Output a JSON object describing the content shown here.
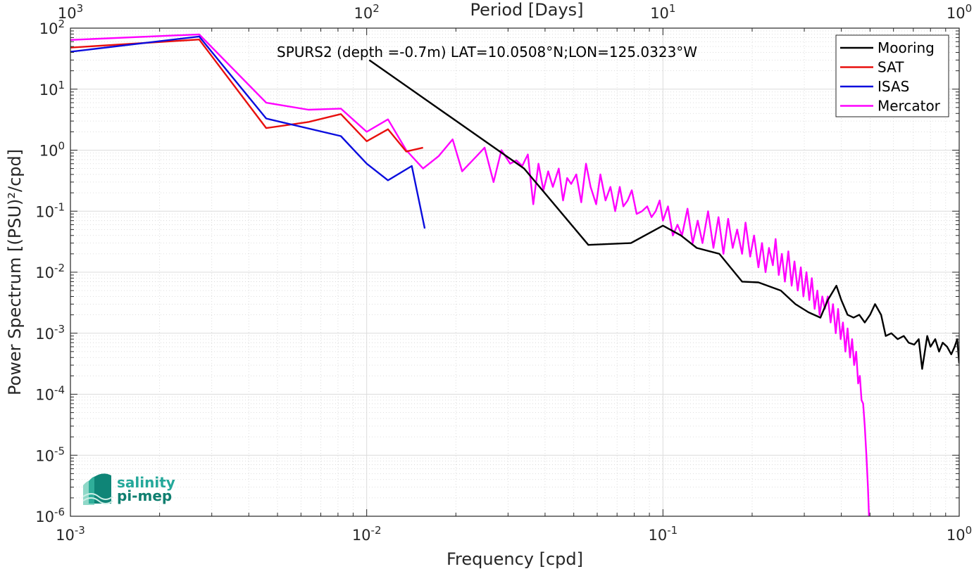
{
  "chart_data": {
    "type": "line",
    "title": "SPURS2 (depth =-0.7m) LAT=10.0508°N;LON=125.0323°W",
    "xlabel": "Frequency [cpd]",
    "ylabel": "Power Spectrum [(PSU)²/cpd]",
    "x2label": "Period [Days]",
    "xscale": "log",
    "yscale": "log",
    "xlim": [
      0.001,
      1
    ],
    "ylim": [
      1e-06,
      100
    ],
    "grid": true,
    "legend_position": "top-right",
    "x_ticks": [
      {
        "value": 0.001,
        "base": "10",
        "exp": "-3"
      },
      {
        "value": 0.01,
        "base": "10",
        "exp": "-2"
      },
      {
        "value": 0.1,
        "base": "10",
        "exp": "-1"
      },
      {
        "value": 1,
        "base": "10",
        "exp": "0"
      }
    ],
    "x2_ticks": [
      {
        "value": 0.001,
        "base": "10",
        "exp": "3"
      },
      {
        "value": 0.01,
        "base": "10",
        "exp": "2"
      },
      {
        "value": 0.1,
        "base": "10",
        "exp": "1"
      },
      {
        "value": 1,
        "base": "10",
        "exp": "0"
      }
    ],
    "y_ticks": [
      {
        "value": 100,
        "base": "10",
        "exp": "2"
      },
      {
        "value": 10,
        "base": "10",
        "exp": "1"
      },
      {
        "value": 1,
        "base": "10",
        "exp": "0"
      },
      {
        "value": 0.1,
        "base": "10",
        "exp": "-1"
      },
      {
        "value": 0.01,
        "base": "10",
        "exp": "-2"
      },
      {
        "value": 0.001,
        "base": "10",
        "exp": "-3"
      },
      {
        "value": 0.0001,
        "base": "10",
        "exp": "-4"
      },
      {
        "value": 1e-05,
        "base": "10",
        "exp": "-5"
      },
      {
        "value": 1e-06,
        "base": "10",
        "exp": "-6"
      }
    ],
    "series": [
      {
        "name": "Mooring",
        "color": "#000000",
        "points": [
          [
            0.0102,
            30
          ],
          [
            0.034,
            0.5
          ],
          [
            0.056,
            0.028
          ],
          [
            0.078,
            0.03
          ],
          [
            0.1,
            0.058
          ],
          [
            0.115,
            0.04
          ],
          [
            0.13,
            0.025
          ],
          [
            0.155,
            0.02
          ],
          [
            0.185,
            0.007
          ],
          [
            0.21,
            0.0068
          ],
          [
            0.25,
            0.005
          ],
          [
            0.28,
            0.003
          ],
          [
            0.31,
            0.0022
          ],
          [
            0.34,
            0.0018
          ],
          [
            0.36,
            0.0035
          ],
          [
            0.385,
            0.006
          ],
          [
            0.4,
            0.0035
          ],
          [
            0.42,
            0.002
          ],
          [
            0.44,
            0.0018
          ],
          [
            0.46,
            0.002
          ],
          [
            0.48,
            0.0015
          ],
          [
            0.5,
            0.002
          ],
          [
            0.52,
            0.003
          ],
          [
            0.545,
            0.002
          ],
          [
            0.565,
            0.0009
          ],
          [
            0.59,
            0.001
          ],
          [
            0.62,
            0.0008
          ],
          [
            0.65,
            0.0009
          ],
          [
            0.675,
            0.0007
          ],
          [
            0.705,
            0.00065
          ],
          [
            0.73,
            0.0008
          ],
          [
            0.75,
            0.00026
          ],
          [
            0.78,
            0.0009
          ],
          [
            0.8,
            0.0006
          ],
          [
            0.83,
            0.0008
          ],
          [
            0.855,
            0.0005
          ],
          [
            0.88,
            0.0007
          ],
          [
            0.91,
            0.0006
          ],
          [
            0.94,
            0.00045
          ],
          [
            0.965,
            0.0006
          ],
          [
            0.985,
            0.0008
          ],
          [
            1.0,
            0.00032
          ]
        ]
      },
      {
        "name": "SAT",
        "color": "#e8100e",
        "points": [
          [
            0.001,
            48
          ],
          [
            0.00272,
            65
          ],
          [
            0.00458,
            2.3
          ],
          [
            0.00636,
            2.9
          ],
          [
            0.00818,
            3.9
          ],
          [
            0.01,
            1.4
          ],
          [
            0.0118,
            2.2
          ],
          [
            0.0136,
            0.95
          ],
          [
            0.0155,
            1.1
          ]
        ]
      },
      {
        "name": "ISAS",
        "color": "#0b0dde",
        "points": [
          [
            0.001,
            41
          ],
          [
            0.00272,
            73
          ],
          [
            0.00458,
            3.3
          ],
          [
            0.00818,
            1.7
          ],
          [
            0.01,
            0.6
          ],
          [
            0.0118,
            0.32
          ],
          [
            0.0142,
            0.55
          ],
          [
            0.0157,
            0.052
          ]
        ]
      },
      {
        "name": "Mercator",
        "color": "#ff00ff",
        "points": [
          [
            0.001,
            64
          ],
          [
            0.00272,
            79
          ],
          [
            0.00458,
            6
          ],
          [
            0.00636,
            4.6
          ],
          [
            0.00818,
            4.8
          ],
          [
            0.01,
            2.0
          ],
          [
            0.0118,
            3.2
          ],
          [
            0.0136,
            1.0
          ],
          [
            0.0155,
            0.5
          ],
          [
            0.0175,
            0.8
          ],
          [
            0.0195,
            1.5
          ],
          [
            0.021,
            0.45
          ],
          [
            0.0235,
            0.8
          ],
          [
            0.025,
            1.1
          ],
          [
            0.0268,
            0.3
          ],
          [
            0.0285,
            1.0
          ],
          [
            0.0305,
            0.6
          ],
          [
            0.032,
            0.68
          ],
          [
            0.0335,
            0.55
          ],
          [
            0.035,
            0.85
          ],
          [
            0.0365,
            0.13
          ],
          [
            0.038,
            0.6
          ],
          [
            0.0395,
            0.22
          ],
          [
            0.041,
            0.45
          ],
          [
            0.0425,
            0.25
          ],
          [
            0.0445,
            0.5
          ],
          [
            0.046,
            0.15
          ],
          [
            0.0475,
            0.35
          ],
          [
            0.049,
            0.28
          ],
          [
            0.051,
            0.4
          ],
          [
            0.053,
            0.14
          ],
          [
            0.055,
            0.6
          ],
          [
            0.057,
            0.25
          ],
          [
            0.0595,
            0.13
          ],
          [
            0.0615,
            0.4
          ],
          [
            0.064,
            0.15
          ],
          [
            0.0665,
            0.25
          ],
          [
            0.069,
            0.1
          ],
          [
            0.0715,
            0.25
          ],
          [
            0.0735,
            0.12
          ],
          [
            0.076,
            0.15
          ],
          [
            0.0785,
            0.22
          ],
          [
            0.0815,
            0.09
          ],
          [
            0.085,
            0.1
          ],
          [
            0.0885,
            0.12
          ],
          [
            0.0915,
            0.08
          ],
          [
            0.0945,
            0.1
          ],
          [
            0.0975,
            0.15
          ],
          [
            0.1,
            0.07
          ],
          [
            0.104,
            0.12
          ],
          [
            0.108,
            0.04
          ],
          [
            0.112,
            0.06
          ],
          [
            0.116,
            0.04
          ],
          [
            0.121,
            0.11
          ],
          [
            0.126,
            0.03
          ],
          [
            0.131,
            0.07
          ],
          [
            0.136,
            0.03
          ],
          [
            0.142,
            0.1
          ],
          [
            0.148,
            0.025
          ],
          [
            0.154,
            0.08
          ],
          [
            0.16,
            0.02
          ],
          [
            0.166,
            0.075
          ],
          [
            0.172,
            0.025
          ],
          [
            0.178,
            0.05
          ],
          [
            0.185,
            0.02
          ],
          [
            0.19,
            0.065
          ],
          [
            0.197,
            0.018
          ],
          [
            0.203,
            0.04
          ],
          [
            0.21,
            0.012
          ],
          [
            0.216,
            0.03
          ],
          [
            0.222,
            0.01
          ],
          [
            0.228,
            0.025
          ],
          [
            0.235,
            0.013
          ],
          [
            0.24,
            0.035
          ],
          [
            0.246,
            0.009
          ],
          [
            0.252,
            0.02
          ],
          [
            0.258,
            0.007
          ],
          [
            0.265,
            0.022
          ],
          [
            0.272,
            0.006
          ],
          [
            0.278,
            0.015
          ],
          [
            0.285,
            0.005
          ],
          [
            0.292,
            0.012
          ],
          [
            0.298,
            0.004
          ],
          [
            0.305,
            0.01
          ],
          [
            0.312,
            0.0035
          ],
          [
            0.318,
            0.008
          ],
          [
            0.325,
            0.0025
          ],
          [
            0.332,
            0.005
          ],
          [
            0.338,
            0.002
          ],
          [
            0.345,
            0.004
          ],
          [
            0.352,
            0.0025
          ],
          [
            0.36,
            0.004
          ],
          [
            0.368,
            0.0015
          ],
          [
            0.375,
            0.003
          ],
          [
            0.383,
            0.001
          ],
          [
            0.39,
            0.0025
          ],
          [
            0.398,
            0.0008
          ],
          [
            0.405,
            0.0015
          ],
          [
            0.413,
            0.0005
          ],
          [
            0.42,
            0.0012
          ],
          [
            0.428,
            0.0004
          ],
          [
            0.435,
            0.0008
          ],
          [
            0.442,
            0.0003
          ],
          [
            0.449,
            0.0005
          ],
          [
            0.456,
            0.00015
          ],
          [
            0.462,
            0.0002
          ],
          [
            0.468,
            8e-05
          ],
          [
            0.474,
            7e-05
          ],
          [
            0.48,
            3e-05
          ],
          [
            0.486,
            1e-05
          ],
          [
            0.492,
            3e-06
          ],
          [
            0.496,
            1e-06
          ]
        ]
      }
    ]
  },
  "logo": {
    "line1": "salinity",
    "line2": "pi-mep"
  }
}
